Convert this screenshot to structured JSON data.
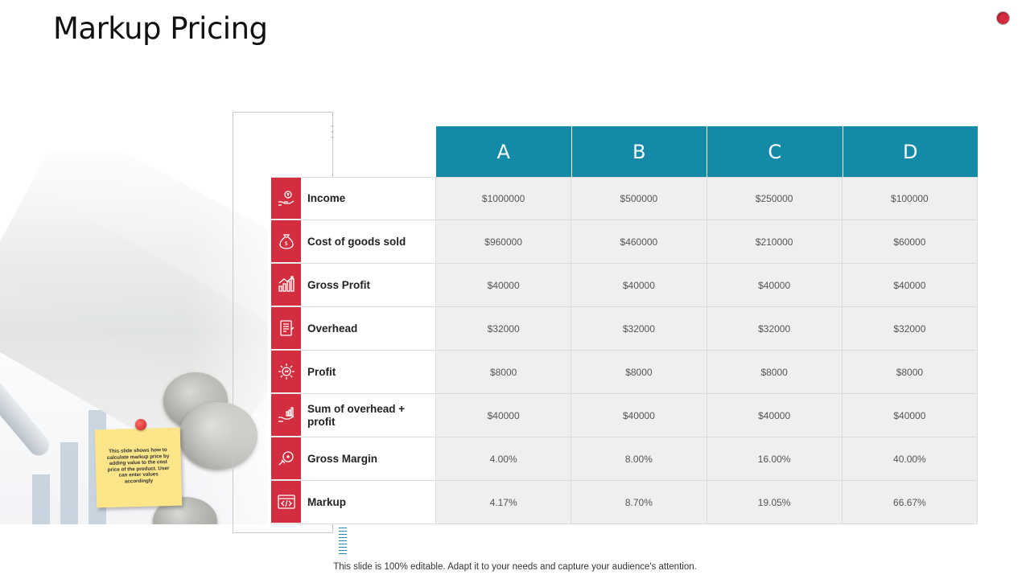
{
  "slide": {
    "title": "Markup Pricing",
    "footer": "This slide is 100% editable. Adapt it to your needs and capture your audience's attention.",
    "note": "This slide shows how to calculate markup price by adding value to the  cost price of the product. User can enter values accordingly"
  },
  "colors": {
    "header": "#1589a8",
    "icon_bg": "#d22e3f",
    "note": "#fde58a"
  },
  "table": {
    "columns": [
      "A",
      "B",
      "C",
      "D"
    ],
    "rows": [
      {
        "label": "Income",
        "icon": "income-icon",
        "values": [
          "$1000000",
          "$500000",
          "$250000",
          "$100000"
        ]
      },
      {
        "label": "Cost of goods sold",
        "icon": "money-bag-icon",
        "values": [
          "$960000",
          "$460000",
          "$210000",
          "$60000"
        ]
      },
      {
        "label": "Gross Profit",
        "icon": "growth-chart-icon",
        "values": [
          "$40000",
          "$40000",
          "$40000",
          "$40000"
        ]
      },
      {
        "label": "Overhead",
        "icon": "document-icon",
        "values": [
          "$32000",
          "$32000",
          "$32000",
          "$32000"
        ]
      },
      {
        "label": "Profit",
        "icon": "gear-icon",
        "values": [
          "$8000",
          "$8000",
          "$8000",
          "$8000"
        ]
      },
      {
        "label": "Sum of overhead + profit",
        "icon": "hand-chart-icon",
        "values": [
          "$40000",
          "$40000",
          "$40000",
          "$40000"
        ]
      },
      {
        "label": "Gross Margin",
        "icon": "margin-icon",
        "values": [
          "4.00%",
          "8.00%",
          "16.00%",
          "40.00%"
        ]
      },
      {
        "label": "Markup",
        "icon": "code-icon",
        "values": [
          "4.17%",
          "8.70%",
          "19.05%",
          "66.67%"
        ]
      }
    ]
  }
}
